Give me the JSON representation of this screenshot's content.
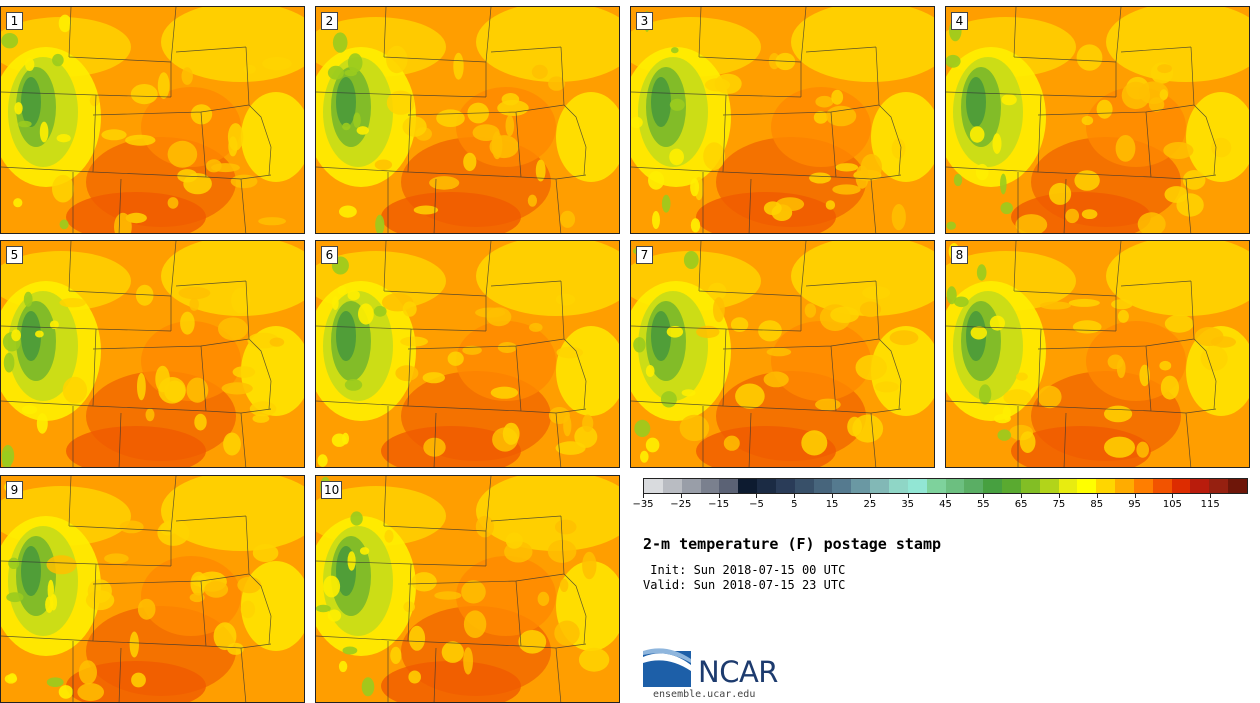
{
  "panels": [
    {
      "label": "1"
    },
    {
      "label": "2"
    },
    {
      "label": "3"
    },
    {
      "label": "4"
    },
    {
      "label": "5"
    },
    {
      "label": "6"
    },
    {
      "label": "7"
    },
    {
      "label": "8"
    },
    {
      "label": "9"
    },
    {
      "label": "10"
    }
  ],
  "colorbar": {
    "colors": [
      "#d9dbde",
      "#b9bcc2",
      "#999ea8",
      "#7a808e",
      "#5b6275",
      "#0d1b30",
      "#1b2b44",
      "#2a3c58",
      "#385069",
      "#47657c",
      "#557a8f",
      "#6a98a3",
      "#82b8b6",
      "#8fd6c6",
      "#92e6d4",
      "#7ed29c",
      "#6cbf80",
      "#5aae64",
      "#47a040",
      "#5aaa30",
      "#82be25",
      "#b2d41a",
      "#e8ec10",
      "#ffff00",
      "#ffd600",
      "#ffac00",
      "#ff7e00",
      "#f25300",
      "#dd2c00",
      "#b91c0c",
      "#962010",
      "#6e1609"
    ],
    "tick_labels": [
      "−35",
      "−25",
      "−15",
      "−5",
      "5",
      "15",
      "25",
      "35",
      "45",
      "55",
      "65",
      "75",
      "85",
      "95",
      "105",
      "115"
    ]
  },
  "title": "2-m temperature (F) postage stamp",
  "init": " Init: Sun 2018-07-15 00 UTC",
  "valid": "Valid: Sun 2018-07-15 23 UTC",
  "logo": {
    "name": "NCAR",
    "site": "ensemble.ucar.edu"
  }
}
